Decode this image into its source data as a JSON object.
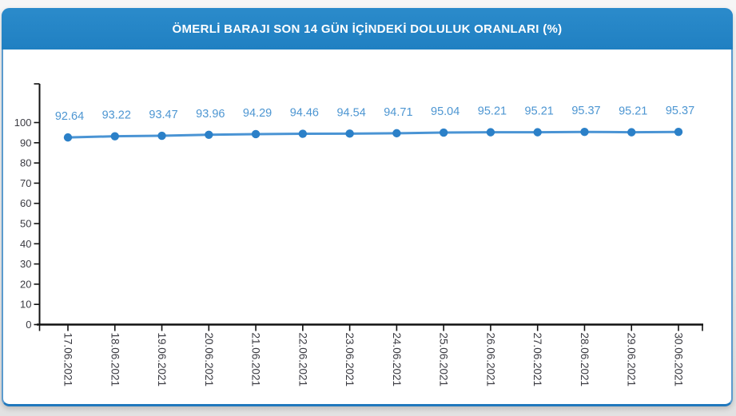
{
  "header": {
    "title": "ÖMERLİ BARAJI SON 14 GÜN İÇİNDEKİ DOLULUK ORANLARI (%)"
  },
  "colors": {
    "header_bg": "#2484c6",
    "card_border_side": "#5b9bce",
    "card_border_bottom": "#1f78bd",
    "line": "#4a94d4",
    "point": "#2b80c8",
    "data_label": "#4d96d2",
    "axis": "#111111",
    "axis_label": "#3b3b42",
    "title_text": "#ffffff"
  },
  "chart_data": {
    "type": "line",
    "title": "ÖMERLİ BARAJI SON 14 GÜN İÇİNDEKİ DOLULUK ORANLARI (%)",
    "categories": [
      "17.06.2021",
      "18.06.2021",
      "19.06.2021",
      "20.06.2021",
      "21.06.2021",
      "22.06.2021",
      "23.06.2021",
      "24.06.2021",
      "25.06.2021",
      "26.06.2021",
      "27.06.2021",
      "28.06.2021",
      "29.06.2021",
      "30.06.2021"
    ],
    "values": [
      92.64,
      93.22,
      93.47,
      93.96,
      94.29,
      94.46,
      94.54,
      94.71,
      95.04,
      95.21,
      95.21,
      95.37,
      95.21,
      95.37
    ],
    "data_label_texts": [
      "92.64",
      "93.22",
      "93.47",
      "93.96",
      "94.29",
      "94.46",
      "94.54",
      "94.71",
      "95.04",
      "95.21",
      "95.21",
      "95.37",
      "95.21",
      "95.37"
    ],
    "xlabel": "",
    "ylabel": "",
    "ylim": [
      0,
      110
    ],
    "yticks": [
      0,
      10,
      20,
      30,
      40,
      50,
      60,
      70,
      80,
      90,
      100
    ],
    "grid": false,
    "legend": "none",
    "data_labels": true,
    "x_label_rotation": 90
  }
}
